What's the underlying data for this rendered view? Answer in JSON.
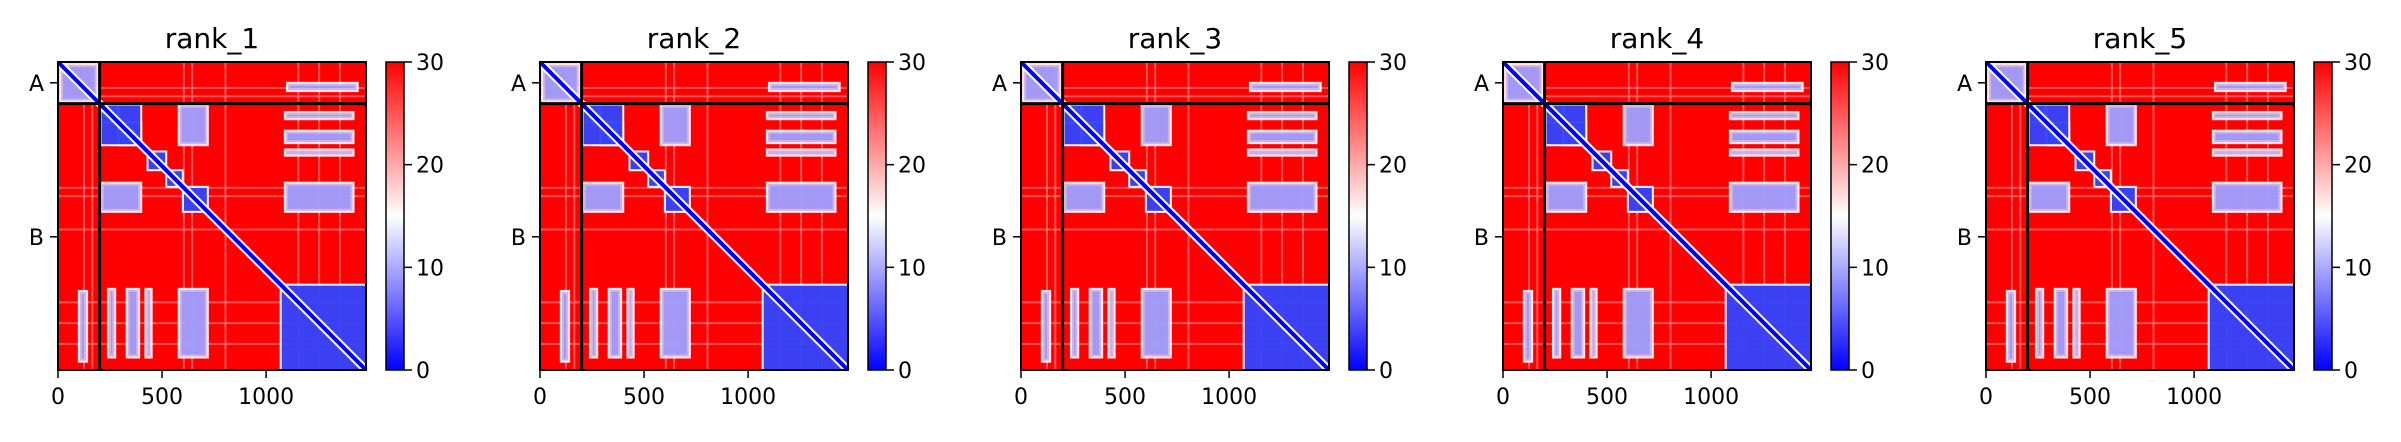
{
  "chart_data": [
    {
      "type": "heatmap",
      "title": "rank_1",
      "xlim": [
        0,
        1480
      ],
      "x_ticks": [
        "0",
        "500",
        "1000"
      ],
      "x_tick_values": [
        0,
        500,
        1000
      ],
      "y_ticks": [
        "A",
        "B"
      ],
      "y_tick_values": [
        100,
        840
      ],
      "chain_boundary": 200,
      "colorbar": {
        "min": 0,
        "max": 30,
        "ticks": [
          "0",
          "10",
          "20",
          "30"
        ],
        "tick_values": [
          0,
          10,
          20,
          30
        ]
      },
      "colors": {
        "low": "#0000ff",
        "mid": "#ffffff",
        "high": "#ff0000"
      }
    },
    {
      "type": "heatmap",
      "title": "rank_2",
      "xlim": [
        0,
        1480
      ],
      "x_ticks": [
        "0",
        "500",
        "1000"
      ],
      "x_tick_values": [
        0,
        500,
        1000
      ],
      "y_ticks": [
        "A",
        "B"
      ],
      "y_tick_values": [
        100,
        840
      ],
      "chain_boundary": 200,
      "colorbar": {
        "min": 0,
        "max": 30,
        "ticks": [
          "0",
          "10",
          "20",
          "30"
        ],
        "tick_values": [
          0,
          10,
          20,
          30
        ]
      },
      "colors": {
        "low": "#0000ff",
        "mid": "#ffffff",
        "high": "#ff0000"
      }
    },
    {
      "type": "heatmap",
      "title": "rank_3",
      "xlim": [
        0,
        1480
      ],
      "x_ticks": [
        "0",
        "500",
        "1000"
      ],
      "x_tick_values": [
        0,
        500,
        1000
      ],
      "y_ticks": [
        "A",
        "B"
      ],
      "y_tick_values": [
        100,
        840
      ],
      "chain_boundary": 200,
      "colorbar": {
        "min": 0,
        "max": 30,
        "ticks": [
          "0",
          "10",
          "20",
          "30"
        ],
        "tick_values": [
          0,
          10,
          20,
          30
        ]
      },
      "colors": {
        "low": "#0000ff",
        "mid": "#ffffff",
        "high": "#ff0000"
      }
    },
    {
      "type": "heatmap",
      "title": "rank_4",
      "xlim": [
        0,
        1480
      ],
      "x_ticks": [
        "0",
        "500",
        "1000"
      ],
      "x_tick_values": [
        0,
        500,
        1000
      ],
      "y_ticks": [
        "A",
        "B"
      ],
      "y_tick_values": [
        100,
        840
      ],
      "chain_boundary": 200,
      "colorbar": {
        "min": 0,
        "max": 30,
        "ticks": [
          "0",
          "10",
          "20",
          "30"
        ],
        "tick_values": [
          0,
          10,
          20,
          30
        ]
      },
      "colors": {
        "low": "#0000ff",
        "mid": "#ffffff",
        "high": "#ff0000"
      }
    },
    {
      "type": "heatmap",
      "title": "rank_5",
      "xlim": [
        0,
        1480
      ],
      "x_ticks": [
        "0",
        "500",
        "1000"
      ],
      "x_tick_values": [
        0,
        500,
        1000
      ],
      "y_ticks": [
        "A",
        "B"
      ],
      "y_tick_values": [
        100,
        840
      ],
      "chain_boundary": 200,
      "colorbar": {
        "min": 0,
        "max": 30,
        "ticks": [
          "0",
          "10",
          "20",
          "30"
        ],
        "tick_values": [
          0,
          10,
          20,
          30
        ]
      },
      "colors": {
        "low": "#0000ff",
        "mid": "#ffffff",
        "high": "#ff0000"
      }
    }
  ]
}
